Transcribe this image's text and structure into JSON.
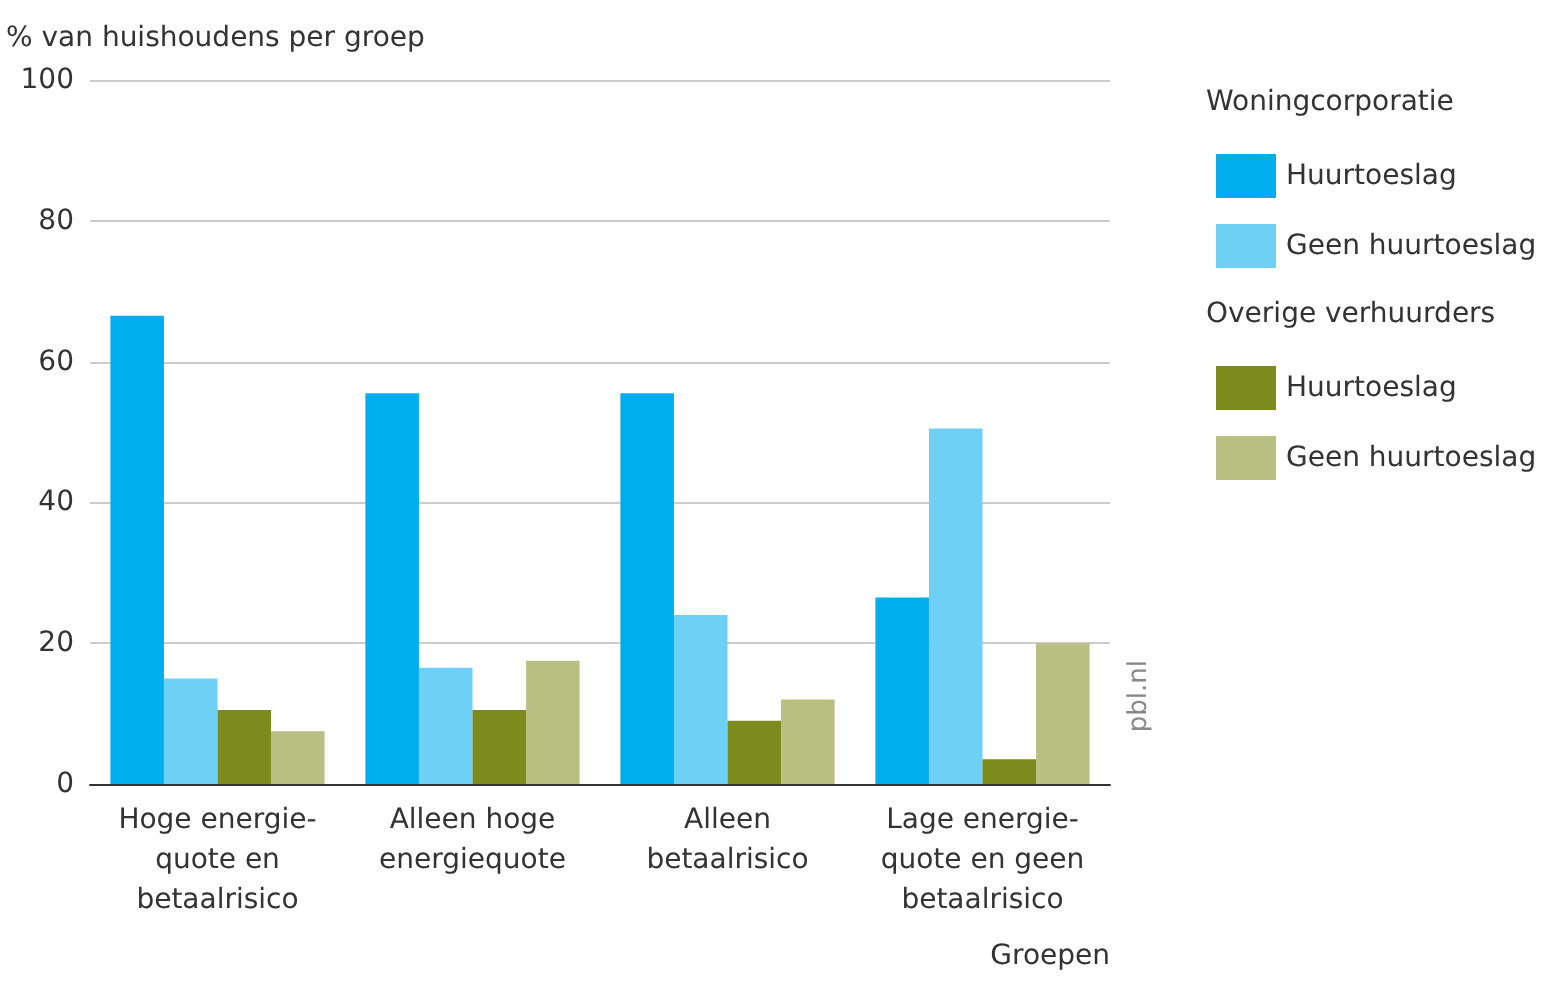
{
  "chart_data": {
    "type": "bar",
    "ylabel": "% van huishoudens per groep",
    "xlabel": "Groepen",
    "categories": [
      "Hoge energie-\nquote en\nbetaalrisico",
      "Alleen hoge\nenergiequote",
      "Alleen\nbetaalrisico",
      "Lage energie-\nquote en geen\nbetaalrisico"
    ],
    "series": [
      {
        "name": "Huurtoeslag",
        "color": "#00aeef",
        "values": [
          66.5,
          55.5,
          55.5,
          26.5
        ]
      },
      {
        "name": "Geen huurtoeslag",
        "color": "#6fd0f6",
        "values": [
          15,
          16.5,
          24,
          50.5
        ]
      },
      {
        "name": "Huurtoeslag",
        "color": "#7d8b1d",
        "values": [
          10.5,
          10.5,
          9,
          3.5
        ]
      },
      {
        "name": "Geen huurtoeslag",
        "color": "#b7bf82",
        "values": [
          7.5,
          17.5,
          12,
          20
        ]
      }
    ],
    "annotations": [
      "Woningcorporatie",
      "Overige verhuurders",
      "pbl.nl"
    ],
    "ylim": [
      0,
      100
    ],
    "yticks": [
      0,
      20,
      40,
      60,
      80,
      100
    ],
    "grid": "y",
    "legend": "right"
  }
}
